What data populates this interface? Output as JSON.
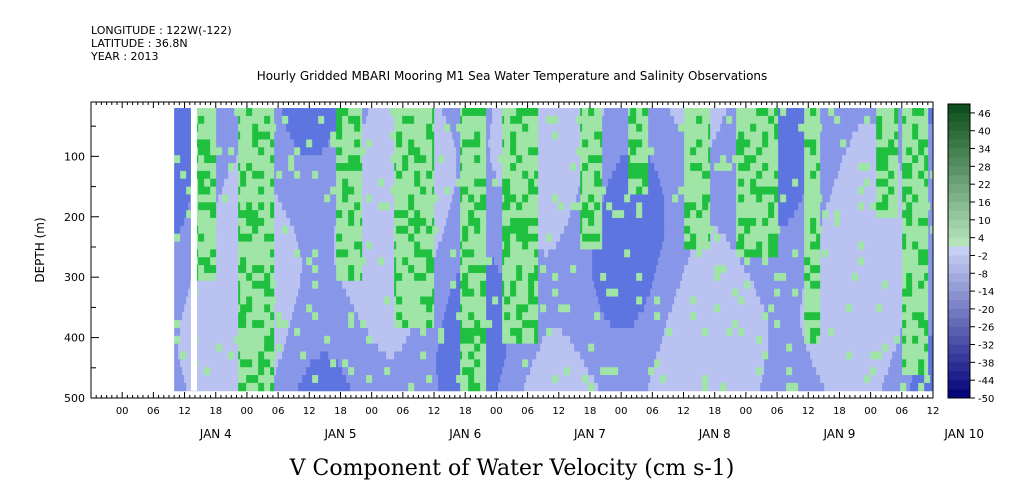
{
  "header": {
    "longitude": "LONGITUDE : 122W(-122)",
    "latitude": "LATITUDE : 36.8N",
    "year": "YEAR : 2013"
  },
  "chart_data": {
    "type": "heatmap",
    "title": "Hourly Gridded MBARI Mooring M1 Sea Water Temperature and Salinity Observations",
    "xlabel": "V Component of Water Velocity (cm s-1)",
    "ylabel": "DEPTH (m)",
    "ylim": [
      500,
      10
    ],
    "y_inverted": true,
    "y_ticks": [
      100,
      200,
      300,
      400,
      500
    ],
    "x_day_labels": [
      "JAN  4",
      "JAN  5",
      "JAN  6",
      "JAN  7",
      "JAN  8",
      "JAN  9",
      "JAN 10"
    ],
    "x_hour_labels": [
      "00",
      "06",
      "12",
      "18"
    ],
    "x_range_hours_from_jan3_00": [
      -6,
      156
    ],
    "data_start_hour": 10,
    "data_end_hour": 156,
    "colorbar": {
      "ticks": [
        46,
        40,
        34,
        28,
        22,
        16,
        10,
        4,
        -2,
        -8,
        -14,
        -20,
        -26,
        -32,
        -38,
        -44,
        -50
      ],
      "min": -50,
      "max": 49,
      "step": 3
    },
    "field_description": "Meridional velocity by depth and time; mixed positive (green, 0 to ~20 cm/s) and negative (blue, 0 to ~-20 cm/s) bands varying over time.",
    "green_bands_hours": [
      [
        14,
        18,
        300
      ],
      [
        22,
        29,
        480
      ],
      [
        41,
        46,
        300
      ],
      [
        52,
        60,
        380
      ],
      [
        65,
        70,
        480
      ],
      [
        73,
        80,
        400
      ],
      [
        88,
        92,
        250
      ],
      [
        97,
        101,
        150
      ],
      [
        108,
        113,
        250
      ],
      [
        118,
        126,
        260
      ],
      [
        131,
        134,
        400
      ],
      [
        145,
        149,
        200
      ],
      [
        150,
        155,
        460
      ]
    ],
    "colors": {
      "green_strong": "#1fbf3f",
      "green_light": "#9fe5a6",
      "blue_light": "#b9c2f0",
      "blue_mid": "#8796e8",
      "blue_strong": "#5d74e0"
    }
  }
}
